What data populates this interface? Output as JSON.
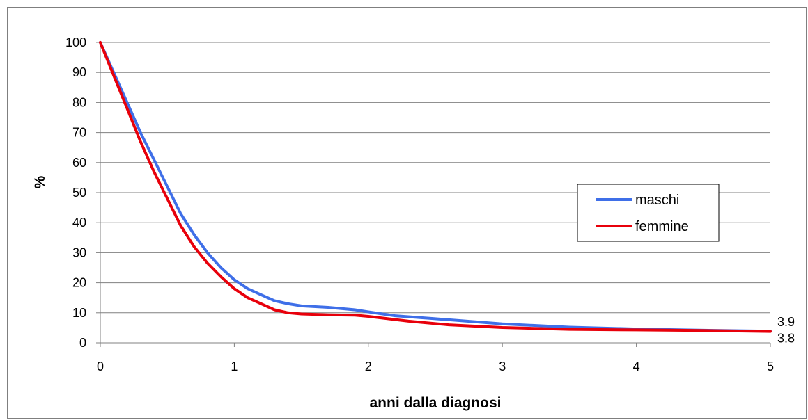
{
  "chart_data": {
    "type": "line",
    "title": "",
    "xlabel": "anni dalla diagnosi",
    "ylabel": "%",
    "xlim": [
      0,
      5
    ],
    "ylim": [
      0,
      100
    ],
    "x_ticks": [
      "0",
      "1",
      "2",
      "3",
      "4",
      "5"
    ],
    "y_ticks": [
      "0",
      "10",
      "20",
      "30",
      "40",
      "50",
      "60",
      "70",
      "80",
      "90",
      "100"
    ],
    "grid": "horizontal",
    "legend_position": "right",
    "series": [
      {
        "name": "maschi",
        "color": "#3f6fe8",
        "end_label": "3.9",
        "points": [
          [
            0,
            100
          ],
          [
            0.1,
            90
          ],
          [
            0.2,
            80
          ],
          [
            0.3,
            70
          ],
          [
            0.4,
            61
          ],
          [
            0.5,
            52
          ],
          [
            0.6,
            43
          ],
          [
            0.7,
            36
          ],
          [
            0.8,
            30
          ],
          [
            0.9,
            25
          ],
          [
            1.0,
            21
          ],
          [
            1.1,
            18
          ],
          [
            1.2,
            16
          ],
          [
            1.3,
            14
          ],
          [
            1.4,
            13
          ],
          [
            1.5,
            12.3
          ],
          [
            1.7,
            11.8
          ],
          [
            1.9,
            11
          ],
          [
            2.0,
            10.3
          ],
          [
            2.2,
            9
          ],
          [
            2.5,
            8
          ],
          [
            3.0,
            6.3
          ],
          [
            3.5,
            5.2
          ],
          [
            4.0,
            4.6
          ],
          [
            4.5,
            4.2
          ],
          [
            5.0,
            3.9
          ]
        ]
      },
      {
        "name": "femmine",
        "color": "#e8000b",
        "end_label": "3.8",
        "points": [
          [
            0,
            100
          ],
          [
            0.1,
            89
          ],
          [
            0.2,
            78
          ],
          [
            0.3,
            67
          ],
          [
            0.4,
            57
          ],
          [
            0.5,
            48
          ],
          [
            0.6,
            39
          ],
          [
            0.7,
            32
          ],
          [
            0.8,
            26.5
          ],
          [
            0.9,
            22
          ],
          [
            1.0,
            18
          ],
          [
            1.1,
            15
          ],
          [
            1.2,
            13
          ],
          [
            1.3,
            11
          ],
          [
            1.4,
            10
          ],
          [
            1.5,
            9.6
          ],
          [
            1.7,
            9.3
          ],
          [
            1.9,
            9.2
          ],
          [
            2.0,
            8.8
          ],
          [
            2.3,
            7.2
          ],
          [
            2.6,
            6
          ],
          [
            3.0,
            5.1
          ],
          [
            3.5,
            4.5
          ],
          [
            4.0,
            4.3
          ],
          [
            4.5,
            4.1
          ],
          [
            5.0,
            3.8
          ]
        ]
      }
    ]
  }
}
